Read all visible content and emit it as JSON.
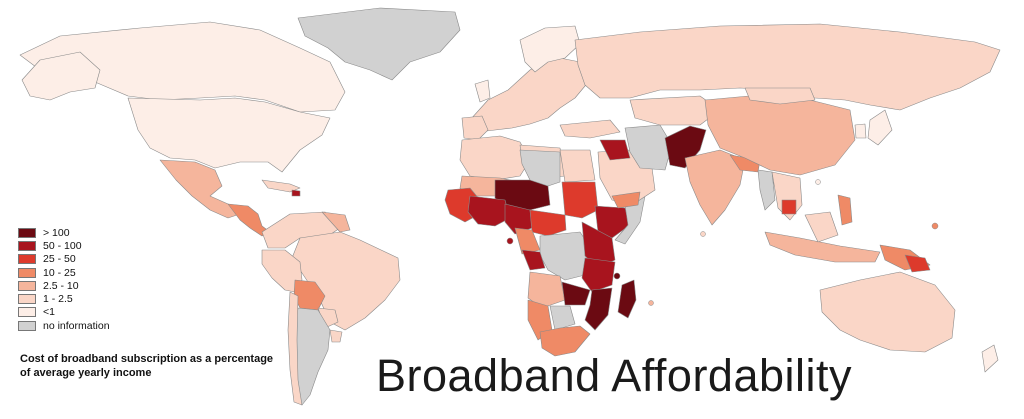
{
  "title": "Broadband Affordability",
  "caption": "Cost of broadband subscription as a percentage of average yearly income",
  "legend": [
    {
      "label": "> 100",
      "color": "#6b0a12"
    },
    {
      "label": "50 - 100",
      "color": "#a8141e"
    },
    {
      "label": "25 - 50",
      "color": "#dd3a2c"
    },
    {
      "label": "10 - 25",
      "color": "#ef8a66"
    },
    {
      "label": "2.5 - 10",
      "color": "#f5b59c"
    },
    {
      "label": "1 - 2.5",
      "color": "#fad6c7"
    },
    {
      "label": "<1",
      "color": "#fdeee7"
    },
    {
      "label": "no information",
      "color": "#d1d1d1"
    }
  ]
}
